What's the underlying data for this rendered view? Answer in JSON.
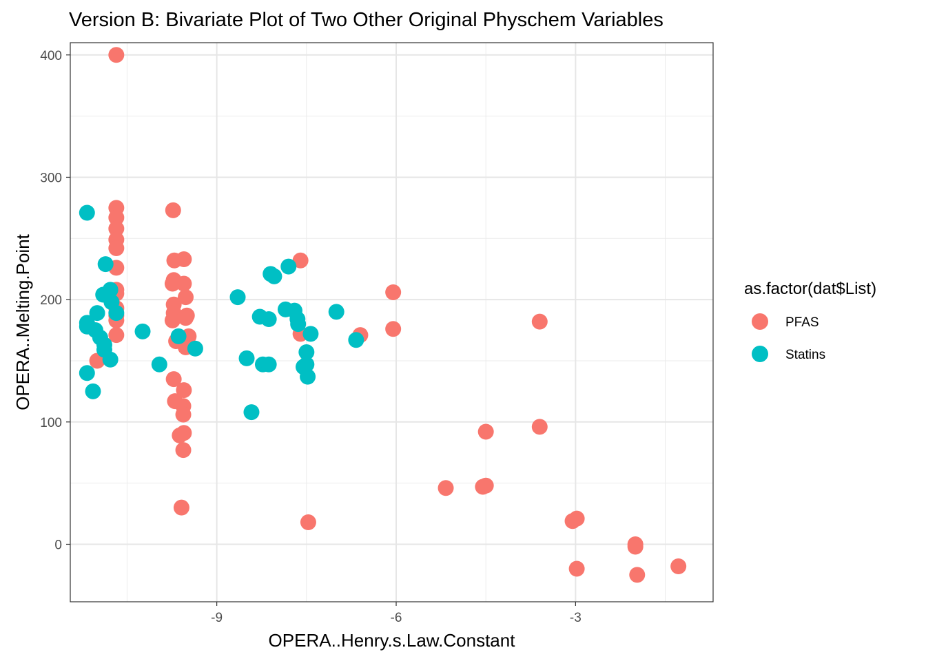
{
  "chart_data": {
    "type": "scatter",
    "title": "Version B: Bivariate Plot of Two Other Original Physchem Variables",
    "xlabel": "OPERA..Henry.s.Law.Constant",
    "ylabel": "OPERA..Melting.Point",
    "xlim": [
      -11.45,
      -0.7
    ],
    "ylim": [
      -47,
      410
    ],
    "x_ticks": [
      -9,
      -6,
      -3
    ],
    "x_tick_labels": [
      "-9",
      "-6",
      "-3"
    ],
    "x_minor": [
      -10.5,
      -7.5,
      -4.5,
      -1.5
    ],
    "y_ticks": [
      0,
      100,
      200,
      300,
      400
    ],
    "y_tick_labels": [
      "0",
      "100",
      "200",
      "300",
      "400"
    ],
    "y_minor": [
      50,
      150,
      250,
      350
    ],
    "grid": true,
    "legend_title": "as.factor(dat$List)",
    "legend_position": "right",
    "series": [
      {
        "name": "PFAS",
        "color": "#F8766D",
        "points": [
          [
            -10.68,
            400
          ],
          [
            -10.68,
            275
          ],
          [
            -10.68,
            267
          ],
          [
            -10.68,
            258
          ],
          [
            -10.68,
            249
          ],
          [
            -10.68,
            242
          ],
          [
            -10.68,
            226
          ],
          [
            -10.68,
            208
          ],
          [
            -10.68,
            205
          ],
          [
            -10.68,
            193
          ],
          [
            -10.68,
            187
          ],
          [
            -10.68,
            183
          ],
          [
            -10.68,
            171
          ],
          [
            -11.0,
            150
          ],
          [
            -9.73,
            273
          ],
          [
            -9.71,
            232
          ],
          [
            -9.72,
            216
          ],
          [
            -9.74,
            213
          ],
          [
            -9.72,
            196
          ],
          [
            -9.72,
            189
          ],
          [
            -9.74,
            183
          ],
          [
            -9.68,
            166
          ],
          [
            -9.72,
            135
          ],
          [
            -9.7,
            117
          ],
          [
            -9.55,
            233
          ],
          [
            -9.55,
            213
          ],
          [
            -9.52,
            202
          ],
          [
            -9.5,
            187
          ],
          [
            -9.52,
            185
          ],
          [
            -9.47,
            170
          ],
          [
            -9.52,
            161
          ],
          [
            -9.55,
            126
          ],
          [
            -9.56,
            113
          ],
          [
            -9.56,
            106
          ],
          [
            -9.55,
            91
          ],
          [
            -9.62,
            89
          ],
          [
            -9.56,
            77
          ],
          [
            -9.59,
            30
          ],
          [
            -7.6,
            232
          ],
          [
            -7.6,
            172
          ],
          [
            -7.47,
            18
          ],
          [
            -6.6,
            171
          ],
          [
            -6.05,
            206
          ],
          [
            -6.05,
            176
          ],
          [
            -5.17,
            46
          ],
          [
            -4.5,
            92
          ],
          [
            -4.55,
            47
          ],
          [
            -4.5,
            48
          ],
          [
            -3.6,
            182
          ],
          [
            -3.6,
            96
          ],
          [
            -3.05,
            19
          ],
          [
            -2.98,
            21
          ],
          [
            -2.98,
            -20
          ],
          [
            -2.0,
            0
          ],
          [
            -2.0,
            -2
          ],
          [
            -1.97,
            -25
          ],
          [
            -1.28,
            -18
          ]
        ]
      },
      {
        "name": "Statins",
        "color": "#00BFC4",
        "points": [
          [
            -11.17,
            271
          ],
          [
            -10.86,
            229
          ],
          [
            -10.9,
            204
          ],
          [
            -10.78,
            208
          ],
          [
            -10.76,
            198
          ],
          [
            -10.68,
            189
          ],
          [
            -11.0,
            189
          ],
          [
            -11.17,
            181
          ],
          [
            -11.17,
            178
          ],
          [
            -11.03,
            175
          ],
          [
            -10.95,
            169
          ],
          [
            -10.88,
            163
          ],
          [
            -10.88,
            159
          ],
          [
            -10.78,
            151
          ],
          [
            -11.17,
            140
          ],
          [
            -11.07,
            125
          ],
          [
            -10.24,
            174
          ],
          [
            -9.96,
            147
          ],
          [
            -9.64,
            170
          ],
          [
            -9.36,
            160
          ],
          [
            -8.65,
            202
          ],
          [
            -8.5,
            152
          ],
          [
            -8.42,
            108
          ],
          [
            -8.28,
            186
          ],
          [
            -8.13,
            184
          ],
          [
            -8.23,
            147
          ],
          [
            -8.13,
            147
          ],
          [
            -8.1,
            221
          ],
          [
            -8.04,
            219
          ],
          [
            -7.8,
            227
          ],
          [
            -7.85,
            192
          ],
          [
            -7.7,
            191
          ],
          [
            -7.65,
            184
          ],
          [
            -7.64,
            180
          ],
          [
            -7.43,
            172
          ],
          [
            -7.5,
            157
          ],
          [
            -7.55,
            145
          ],
          [
            -7.5,
            147
          ],
          [
            -7.48,
            137
          ],
          [
            -7.0,
            190
          ],
          [
            -6.67,
            167
          ]
        ]
      }
    ]
  }
}
